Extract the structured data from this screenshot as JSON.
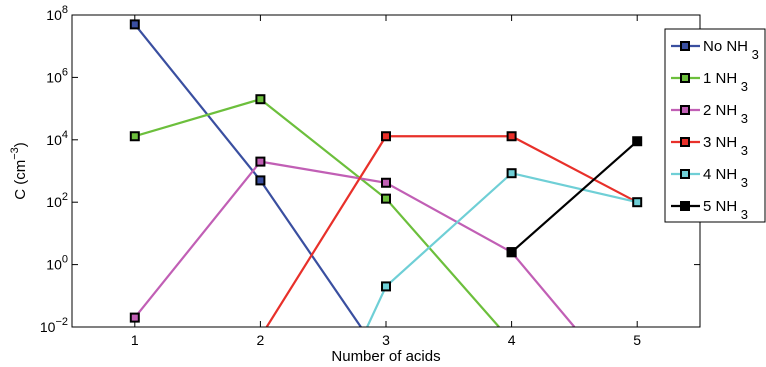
{
  "chart_data": {
    "type": "line",
    "xlabel": "Number of acids",
    "ylabel_main": "C (cm",
    "ylabel_exp": "−3",
    "ylabel_close": ")",
    "y_scale": "log",
    "x_range": [
      0.5,
      5.5
    ],
    "y_range_exponent": [
      -2,
      8
    ],
    "x_ticks": [
      1,
      2,
      3,
      4,
      5
    ],
    "y_ticks": [
      {
        "exp": -2,
        "base": "10",
        "sup": "−2"
      },
      {
        "exp": 0,
        "base": "10",
        "sup": "0"
      },
      {
        "exp": 2,
        "base": "10",
        "sup": "2"
      },
      {
        "exp": 4,
        "base": "10",
        "sup": "4"
      },
      {
        "exp": 6,
        "base": "10",
        "sup": "6"
      },
      {
        "exp": 8,
        "base": "10",
        "sup": "8"
      }
    ],
    "grid": false,
    "legend_position": "outside-top-right",
    "series": [
      {
        "name": "No NH",
        "sub": "3",
        "color": "#3a4fa0",
        "points": [
          [
            1,
            50000000
          ],
          [
            2,
            500
          ],
          [
            2.8,
            0.01
          ]
        ]
      },
      {
        "name": "1 NH",
        "sub": "3",
        "color": "#6cbf3c",
        "points": [
          [
            1,
            13000
          ],
          [
            2,
            200000
          ],
          [
            3,
            130
          ],
          [
            3.9,
            0.01
          ]
        ]
      },
      {
        "name": "2 NH",
        "sub": "3",
        "color": "#c15fb5",
        "points": [
          [
            1,
            0.02
          ],
          [
            2,
            2000
          ],
          [
            3,
            420
          ],
          [
            4,
            2.5
          ],
          [
            4.5,
            0.01
          ]
        ]
      },
      {
        "name": "3 NH",
        "sub": "3",
        "color": "#e8302a",
        "points": [
          [
            2.05,
            0.01
          ],
          [
            3,
            13000
          ],
          [
            4,
            13000
          ],
          [
            5,
            100
          ]
        ]
      },
      {
        "name": "4 NH",
        "sub": "3",
        "color": "#6fcfd6",
        "points": [
          [
            2.85,
            0.01
          ],
          [
            3,
            0.2
          ],
          [
            4,
            850
          ],
          [
            5,
            100
          ]
        ]
      },
      {
        "name": "5 NH",
        "sub": "3",
        "color": "#000000",
        "points": [
          [
            4,
            2.5
          ],
          [
            5,
            9000
          ]
        ]
      }
    ],
    "markers": [
      {
        "x": 1,
        "y": 50000000,
        "color": "#3a4fa0"
      },
      {
        "x": 2,
        "y": 500,
        "color": "#3a4fa0"
      },
      {
        "x": 1,
        "y": 13000,
        "color": "#6cbf3c"
      },
      {
        "x": 2,
        "y": 200000,
        "color": "#6cbf3c"
      },
      {
        "x": 3,
        "y": 130,
        "color": "#6cbf3c"
      },
      {
        "x": 1,
        "y": 0.02,
        "color": "#c15fb5"
      },
      {
        "x": 2,
        "y": 2000,
        "color": "#c15fb5"
      },
      {
        "x": 3,
        "y": 420,
        "color": "#c15fb5"
      },
      {
        "x": 4,
        "y": 2.5,
        "color": "#c15fb5"
      },
      {
        "x": 3,
        "y": 13000,
        "color": "#e8302a"
      },
      {
        "x": 4,
        "y": 13000,
        "color": "#e8302a"
      },
      {
        "x": 3,
        "y": 0.2,
        "color": "#6fcfd6"
      },
      {
        "x": 4,
        "y": 850,
        "color": "#6fcfd6"
      },
      {
        "x": 5,
        "y": 100,
        "color": "#6fcfd6"
      },
      {
        "x": 4,
        "y": 2.5,
        "color": "#000000"
      },
      {
        "x": 5,
        "y": 9000,
        "color": "#000000"
      }
    ]
  }
}
